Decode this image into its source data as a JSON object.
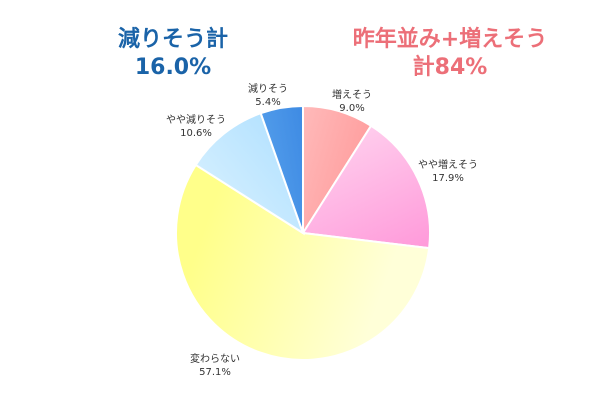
{
  "summaries": {
    "left": {
      "label": "減りそう計",
      "value": "16.0%",
      "color": "#1a63a8"
    },
    "right": {
      "label": "昨年並み+増えそう",
      "value": "計84%",
      "color": "#ec6f78"
    }
  },
  "chart_data": {
    "type": "pie",
    "start": "12 o'clock",
    "direction": "clockwise",
    "slices": [
      {
        "label": "増えそう",
        "value": 9.0,
        "value_label": "9.0%",
        "color_light": "#ffd0d0",
        "color_dark": "#ff8a8a"
      },
      {
        "label": "やや増えそう",
        "value": 17.9,
        "value_label": "17.9%",
        "color_light": "#ffd6f0",
        "color_dark": "#ff8fd6"
      },
      {
        "label": "変わらない",
        "value": 57.1,
        "value_label": "57.1%",
        "color_light": "#ffffd8",
        "color_dark": "#ffff8a"
      },
      {
        "label": "やや減りそう",
        "value": 10.6,
        "value_label": "10.6%",
        "color_light": "#e0f4ff",
        "color_dark": "#a6dcff"
      },
      {
        "label": "減りそう",
        "value": 5.4,
        "value_label": "5.4%",
        "color_light": "#6fb6f5",
        "color_dark": "#1f6fd8"
      }
    ]
  }
}
